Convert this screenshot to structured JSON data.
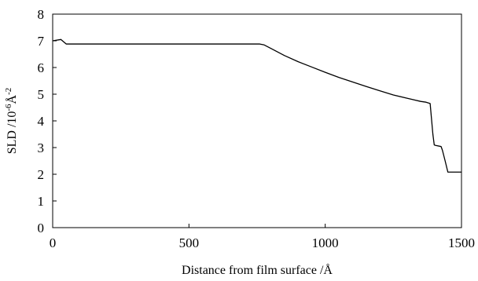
{
  "chart_data": {
    "type": "line",
    "title": "",
    "xlabel": "Distance from film surface /Å",
    "ylabel": "SLD  /10-6Å-2",
    "ylabel_parts": {
      "prefix": "SLD  /10",
      "exp1": "-6",
      "unit": "Å",
      "exp2": "-2"
    },
    "xlim": [
      0,
      1500
    ],
    "ylim": [
      0,
      8
    ],
    "xticks": [
      0,
      500,
      1000,
      1500
    ],
    "yticks": [
      0,
      1,
      2,
      3,
      4,
      5,
      6,
      7,
      8
    ],
    "grid": false,
    "legend": "none",
    "line_color": "#000000",
    "series": [
      {
        "x": [
          0,
          30,
          50,
          760,
          775,
          800,
          850,
          900,
          950,
          1000,
          1050,
          1100,
          1150,
          1200,
          1250,
          1300,
          1350,
          1370,
          1385,
          1395,
          1400,
          1405,
          1420,
          1425,
          1430,
          1440,
          1450,
          1460,
          1500
        ],
        "y": [
          7.0,
          7.05,
          6.88,
          6.88,
          6.85,
          6.72,
          6.45,
          6.22,
          6.02,
          5.82,
          5.63,
          5.46,
          5.29,
          5.13,
          4.97,
          4.85,
          4.73,
          4.7,
          4.65,
          3.5,
          3.1,
          3.08,
          3.05,
          3.04,
          2.9,
          2.5,
          2.08,
          2.08,
          2.08
        ]
      }
    ]
  }
}
